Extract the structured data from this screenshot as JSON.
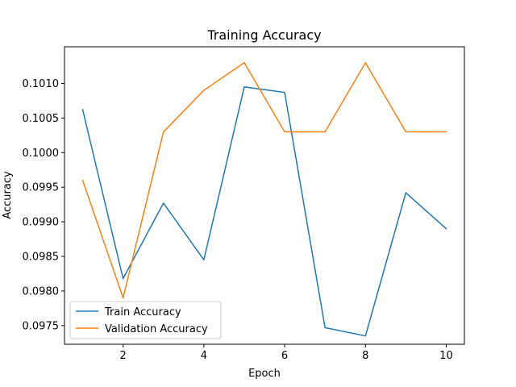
{
  "chart_data": {
    "type": "line",
    "title": "Training Accuracy",
    "xlabel": "Epoch",
    "ylabel": "Accuracy",
    "x": [
      1,
      2,
      3,
      4,
      5,
      6,
      7,
      8,
      9,
      10
    ],
    "xlim": [
      0.55,
      10.45
    ],
    "ylim": [
      0.09723,
      0.10153
    ],
    "xticks": [
      2,
      4,
      6,
      8,
      10
    ],
    "yticks": [
      0.0975,
      0.098,
      0.0985,
      0.099,
      0.0995,
      0.1,
      0.1005,
      0.101
    ],
    "ytick_labels": [
      "0.0975",
      "0.0980",
      "0.0985",
      "0.0990",
      "0.0995",
      "0.1000",
      "0.1005",
      "0.1010"
    ],
    "grid": false,
    "legend_position": "lower-left",
    "series": [
      {
        "name": "Train Accuracy",
        "color": "#1f77b4",
        "values": [
          0.10062,
          0.09818,
          0.09927,
          0.09845,
          0.10095,
          0.10087,
          0.09747,
          0.09735,
          0.09942,
          0.0989
        ]
      },
      {
        "name": "Validation Accuracy",
        "color": "#ff7f0e",
        "values": [
          0.0996,
          0.0979,
          0.1003,
          0.1009,
          0.1013,
          0.1003,
          0.1003,
          0.1013,
          0.1003,
          0.1003
        ]
      }
    ]
  }
}
